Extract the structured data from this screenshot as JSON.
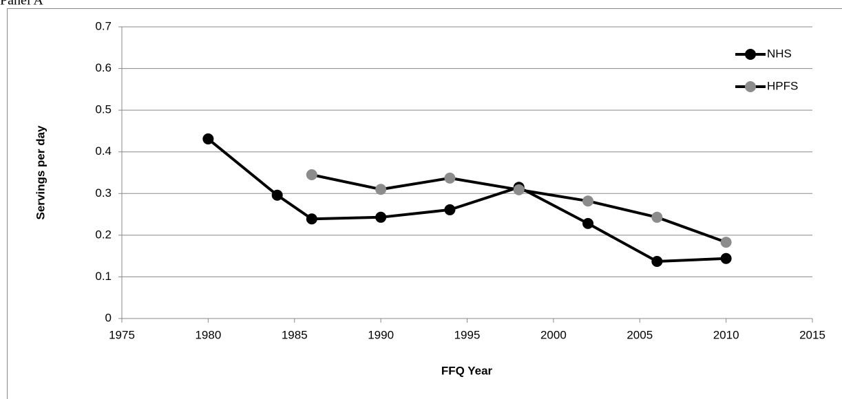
{
  "panel_label": "Panel A",
  "chart_data": {
    "type": "line",
    "x_label": "FFQ Year",
    "y_label": "Servings per day",
    "xlim": [
      1975,
      2015
    ],
    "xticks": [
      1975,
      1980,
      1985,
      1990,
      1995,
      2000,
      2005,
      2010,
      2015
    ],
    "ylim": [
      0,
      0.7
    ],
    "yticks": [
      0,
      0.1,
      0.2,
      0.3,
      0.4,
      0.5,
      0.6,
      0.7
    ],
    "grid": true,
    "legend": "upper right",
    "series": [
      {
        "name": "NHS",
        "color": "#000000",
        "line_color": "#000000",
        "x": [
          1980,
          1984,
          1986,
          1990,
          1994,
          1998,
          2002,
          2006,
          2010
        ],
        "values": [
          0.431,
          0.296,
          0.239,
          0.243,
          0.261,
          0.315,
          0.228,
          0.137,
          0.144
        ]
      },
      {
        "name": "HPFS",
        "color": "#8c8c8c",
        "line_color": "#000000",
        "x": [
          1986,
          1990,
          1994,
          1998,
          2002,
          2006,
          2010
        ],
        "values": [
          0.345,
          0.31,
          0.337,
          0.309,
          0.282,
          0.243,
          0.183
        ]
      }
    ]
  }
}
